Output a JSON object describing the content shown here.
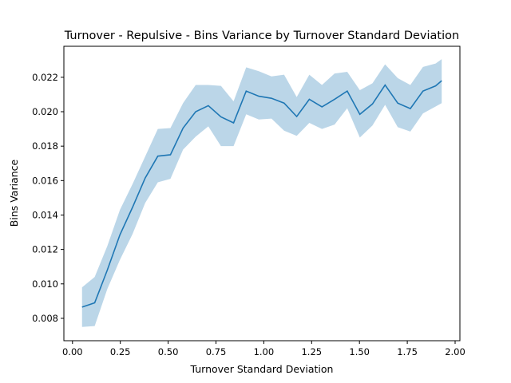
{
  "chart_data": {
    "type": "line",
    "title": "Turnover - Repulsive - Bins Variance by Turnover Standard Deviation",
    "xlabel": "Turnover Standard Deviation",
    "ylabel": "Bins Variance",
    "xlim": [
      -0.045,
      2.025
    ],
    "ylim": [
      0.0067,
      0.0238
    ],
    "xticks": [
      0.0,
      0.25,
      0.5,
      0.75,
      1.0,
      1.25,
      1.5,
      1.75,
      2.0
    ],
    "xtick_labels": [
      "0.00",
      "0.25",
      "0.50",
      "0.75",
      "1.00",
      "1.25",
      "1.50",
      "1.75",
      "2.00"
    ],
    "yticks": [
      0.008,
      0.01,
      0.012,
      0.014,
      0.016,
      0.018,
      0.02,
      0.022
    ],
    "ytick_labels": [
      "0.008",
      "0.010",
      "0.012",
      "0.014",
      "0.016",
      "0.018",
      "0.020",
      "0.022"
    ],
    "grid": false,
    "line_color": "#1f77b4",
    "band_color": "#1f77b4",
    "band_opacity": 0.3,
    "series": [
      {
        "x": [
          0.05,
          0.116,
          0.182,
          0.248,
          0.314,
          0.38,
          0.446,
          0.512,
          0.578,
          0.644,
          0.71,
          0.776,
          0.842,
          0.908,
          0.974,
          1.04,
          1.106,
          1.172,
          1.238,
          1.304,
          1.37,
          1.436,
          1.502,
          1.568,
          1.634,
          1.7,
          1.766,
          1.832,
          1.898,
          1.93
        ],
        "y": [
          0.00865,
          0.0089,
          0.0108,
          0.01285,
          0.01445,
          0.01615,
          0.01742,
          0.0175,
          0.01905,
          0.02,
          0.02035,
          0.0197,
          0.01935,
          0.0212,
          0.0209,
          0.02078,
          0.0205,
          0.01972,
          0.02072,
          0.02028,
          0.02072,
          0.0212,
          0.01985,
          0.02045,
          0.02155,
          0.0205,
          0.02018,
          0.0212,
          0.0215,
          0.0218
        ],
        "lower": [
          0.0075,
          0.00755,
          0.0097,
          0.0114,
          0.0129,
          0.0147,
          0.0159,
          0.0161,
          0.0178,
          0.01855,
          0.01915,
          0.018,
          0.018,
          0.01985,
          0.01955,
          0.0196,
          0.0189,
          0.0186,
          0.01935,
          0.019,
          0.01925,
          0.0202,
          0.0185,
          0.0192,
          0.0204,
          0.0191,
          0.01885,
          0.0199,
          0.0203,
          0.0205
        ],
        "upper": [
          0.0098,
          0.0104,
          0.0122,
          0.0143,
          0.0158,
          0.0174,
          0.019,
          0.01905,
          0.0205,
          0.02155,
          0.02155,
          0.0215,
          0.0206,
          0.02258,
          0.02235,
          0.02205,
          0.02215,
          0.02085,
          0.02215,
          0.02155,
          0.02222,
          0.02232,
          0.02125,
          0.02165,
          0.02275,
          0.02195,
          0.02155,
          0.0226,
          0.0228,
          0.02305
        ]
      }
    ]
  }
}
